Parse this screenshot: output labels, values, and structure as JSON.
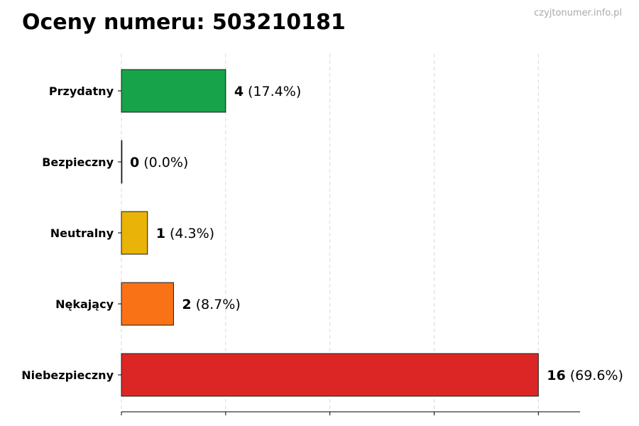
{
  "chart_data": {
    "type": "bar",
    "orientation": "horizontal",
    "title": "Oceny numeru: 503210181",
    "watermark": "czyjtonumer.info.pl",
    "categories": [
      "Przydatny",
      "Bezpieczny",
      "Neutralny",
      "Nękający",
      "Niebezpieczny"
    ],
    "values": [
      4,
      0,
      1,
      2,
      16
    ],
    "percent_labels": [
      "(17.4%)",
      "(0.0%)",
      "(4.3%)",
      "(8.7%)",
      "(69.6%)"
    ],
    "colors": [
      "#16a34a",
      "#6b7280",
      "#eab308",
      "#f97316",
      "#dc2626"
    ],
    "xlim": [
      0,
      17.6
    ],
    "xticks": [
      0,
      4,
      8,
      12,
      16
    ],
    "grid": true,
    "xlabel": "",
    "ylabel": ""
  }
}
